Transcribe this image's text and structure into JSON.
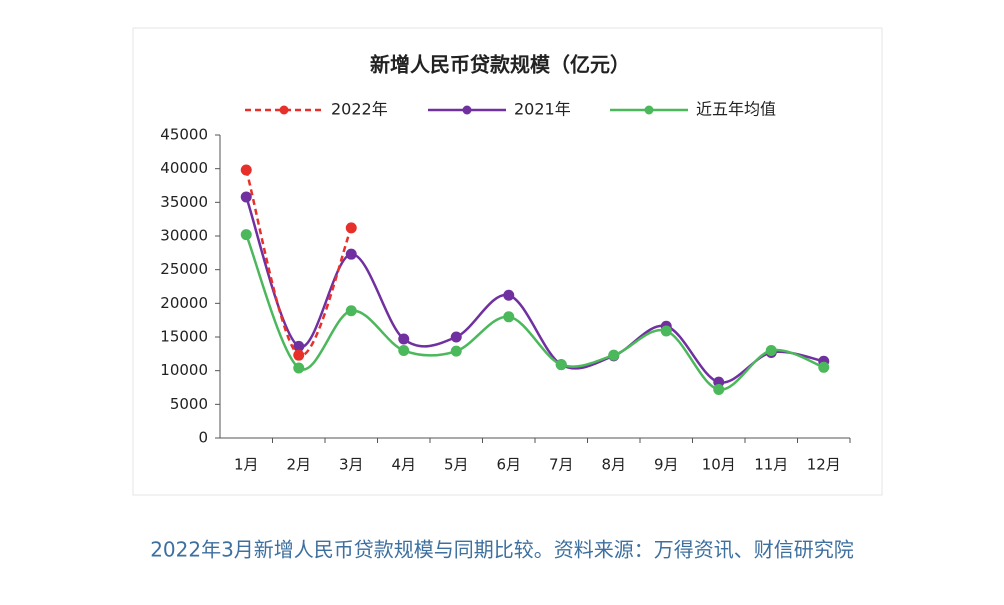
{
  "chart_data": {
    "type": "line",
    "title": "新增人民币贷款规模（亿元）",
    "categories": [
      "1月",
      "2月",
      "3月",
      "4月",
      "5月",
      "6月",
      "7月",
      "8月",
      "9月",
      "10月",
      "11月",
      "12月"
    ],
    "series": [
      {
        "name": "2022年",
        "color": "#e8302a",
        "dashed": true,
        "values": [
          39800,
          12300,
          31200,
          null,
          null,
          null,
          null,
          null,
          null,
          null,
          null,
          null
        ]
      },
      {
        "name": "2021年",
        "color": "#7030a0",
        "values": [
          35800,
          13600,
          27300,
          14700,
          15000,
          21200,
          10900,
          12200,
          16600,
          8300,
          12700,
          11400
        ]
      },
      {
        "name": "近五年均值",
        "color": "#4cb85c",
        "values": [
          30200,
          10400,
          18900,
          13000,
          12900,
          18000,
          10900,
          12300,
          15900,
          7200,
          13000,
          10500
        ]
      }
    ],
    "ylim": [
      0,
      45000
    ],
    "yticks": [
      0,
      5000,
      10000,
      15000,
      20000,
      25000,
      30000,
      35000,
      40000,
      45000
    ],
    "legend": "top",
    "smooth": true
  },
  "caption": "2022年3月新增人民币贷款规模与同期比较。资料来源：万得资讯、财信研究院"
}
